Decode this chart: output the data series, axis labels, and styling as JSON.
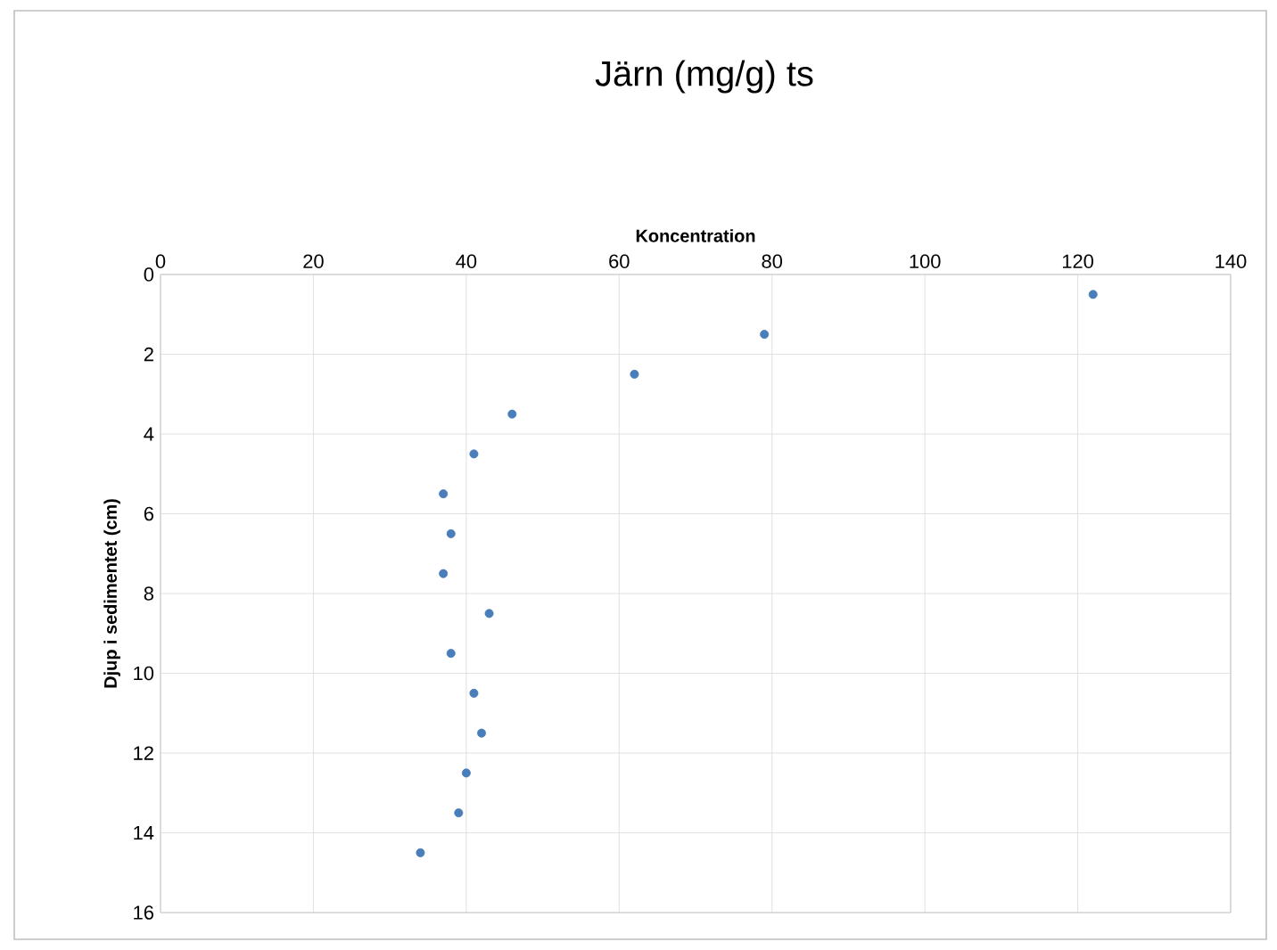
{
  "chart_data": {
    "type": "scatter",
    "title": "Järn (mg/g) ts",
    "xlabel": "Koncentration",
    "ylabel": "Djup i sedimentet (cm)",
    "series": [
      {
        "color": "#4a7ebb",
        "x": [
          122,
          79,
          62,
          46,
          41,
          37,
          38,
          37,
          43,
          38,
          41,
          42,
          40,
          39,
          34
        ],
        "values": [
          0.5,
          1.5,
          2.5,
          3.5,
          4.5,
          5.5,
          6.5,
          7.5,
          8.5,
          9.5,
          10.5,
          11.5,
          12.5,
          13.5,
          14.5
        ]
      }
    ],
    "xlim": [
      0,
      140
    ],
    "xticks": [
      0,
      20,
      40,
      60,
      80,
      100,
      120,
      140
    ],
    "ylim": [
      16,
      0
    ],
    "yticks": [
      0,
      2,
      4,
      6,
      8,
      10,
      12,
      14,
      16
    ],
    "grid": true,
    "marker": "circle"
  }
}
